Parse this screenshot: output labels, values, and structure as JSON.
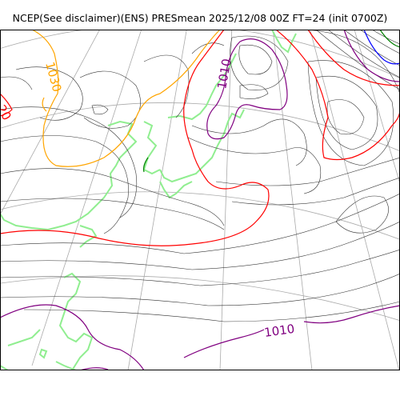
{
  "title": "NCEP(See disclaimer)(ENS) PRESmean 2025/12/08 00Z FT=24 (init 0700Z)",
  "contour_labels": {
    "label_1030": "1030",
    "label_1010_top": "1010",
    "label_1010_bottom": "1010",
    "label_left_edge": "20"
  },
  "colors": {
    "isobar": "#333333",
    "graticule": "#aaaaaa",
    "coastline": "#90ee90",
    "isobar_1030": "#ffa500",
    "isobar_1020": "#ff0000",
    "isobar_1010": "#800080",
    "isobar_1000": "#0000ff",
    "isobar_green": "#008000"
  }
}
